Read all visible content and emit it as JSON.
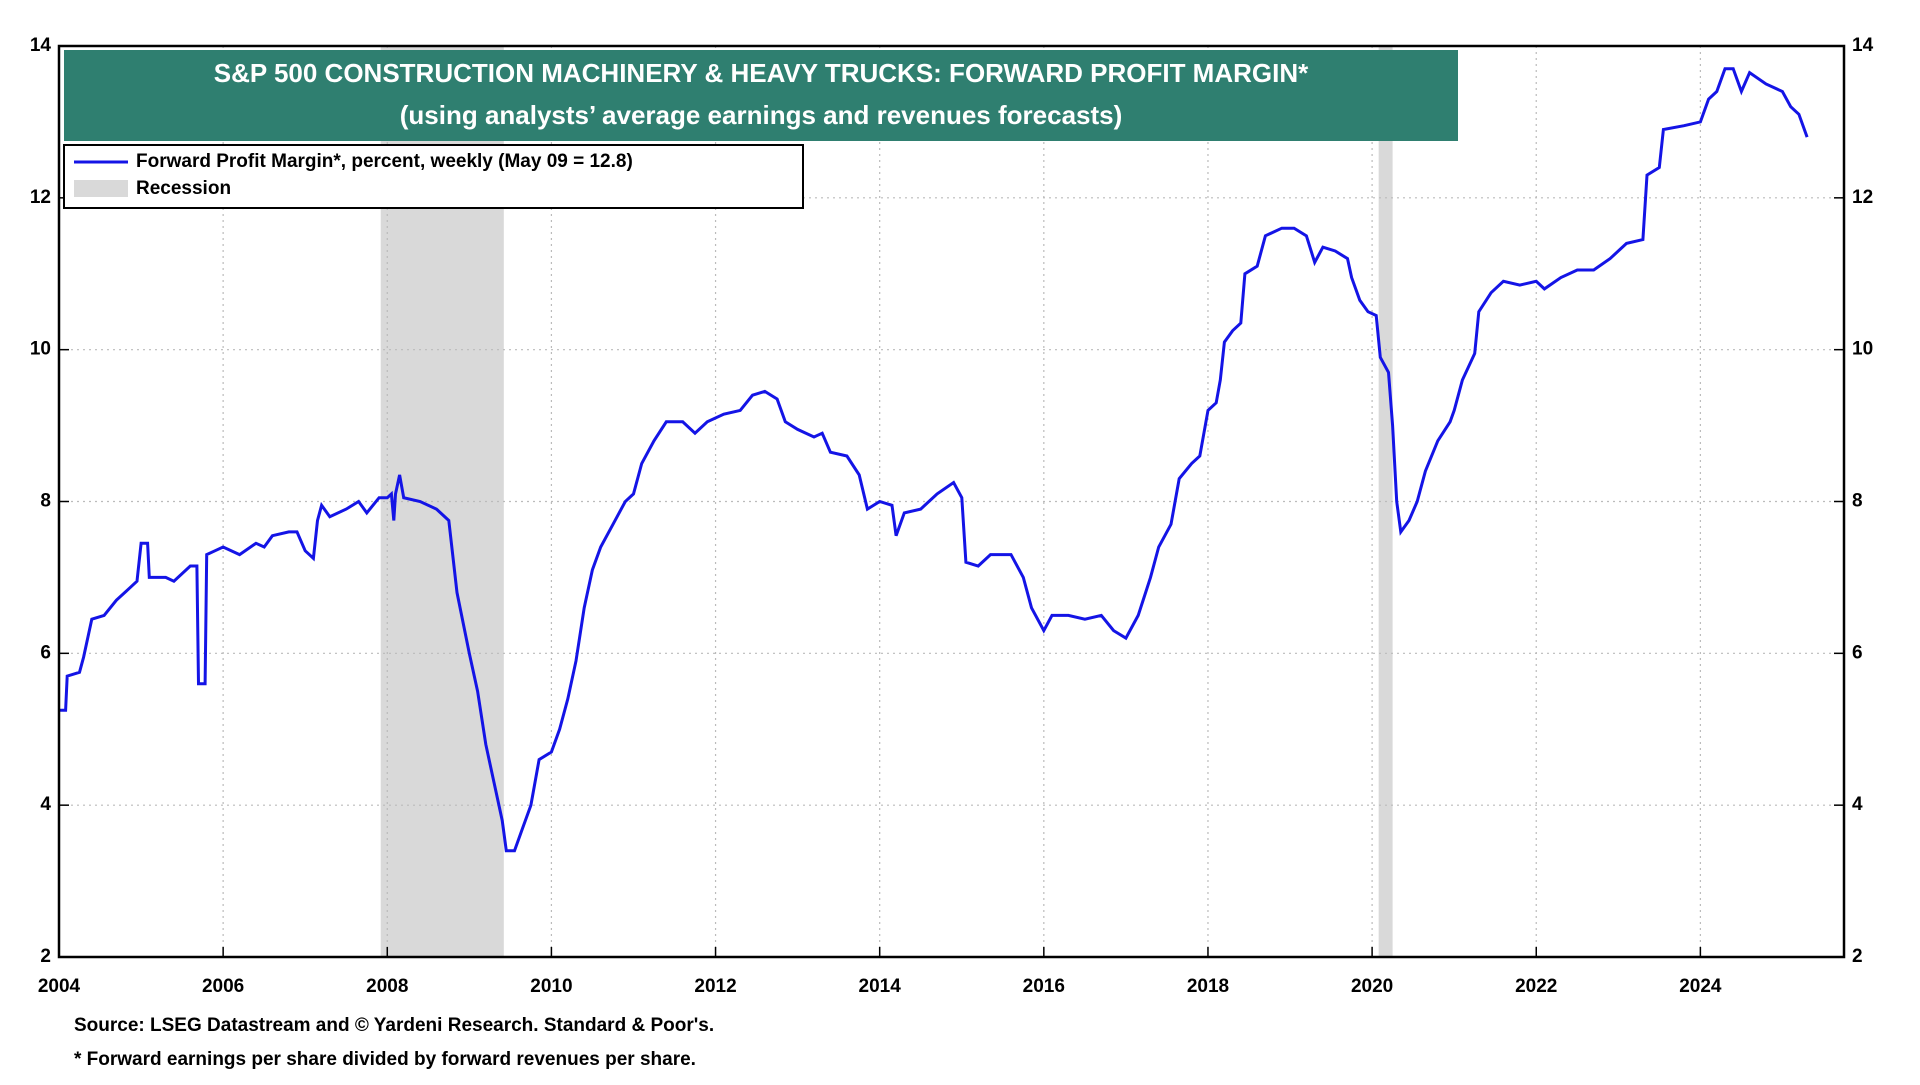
{
  "chart_data": {
    "type": "line",
    "title": "S&P 500 CONSTRUCTION MACHINERY & HEAVY TRUCKS: FORWARD PROFIT MARGIN*",
    "subtitle": "(using analysts’ average earnings and revenues forecasts)",
    "notes": [
      "Source: LSEG Datastream and © Yardeni Research. Standard & Poor's.",
      "* Forward earnings per share divided by forward revenues per share."
    ],
    "recession_label": "Recession",
    "recession_color": "#d9d9d9",
    "recessions": [
      {
        "start": 2007.92,
        "end": 2009.42
      },
      {
        "start": 2020.08,
        "end": 2020.25
      }
    ],
    "xlim": [
      2004,
      2025.75
    ],
    "xticks": [
      2004,
      2006,
      2008,
      2010,
      2012,
      2014,
      2016,
      2018,
      2020,
      2022,
      2024
    ],
    "ylim": [
      2,
      14
    ],
    "yticks": [
      2,
      4,
      6,
      8,
      10,
      12,
      14
    ],
    "grid": true,
    "x": [
      2004.0,
      2004.08,
      2004.1,
      2004.25,
      2004.3,
      2004.4,
      2004.55,
      2004.7,
      2004.85,
      2004.95,
      2005.0,
      2005.08,
      2005.1,
      2005.3,
      2005.4,
      2005.6,
      2005.68,
      2005.7,
      2005.78,
      2005.8,
      2005.9,
      2006.0,
      2006.2,
      2006.4,
      2006.5,
      2006.6,
      2006.8,
      2006.9,
      2007.0,
      2007.1,
      2007.15,
      2007.2,
      2007.3,
      2007.5,
      2007.65,
      2007.75,
      2007.9,
      2008.0,
      2008.05,
      2008.08,
      2008.1,
      2008.15,
      2008.2,
      2008.4,
      2008.6,
      2008.75,
      2008.85,
      2009.0,
      2009.1,
      2009.2,
      2009.3,
      2009.4,
      2009.45,
      2009.55,
      2009.65,
      2009.75,
      2009.85,
      2010.0,
      2010.1,
      2010.2,
      2010.3,
      2010.4,
      2010.5,
      2010.6,
      2010.75,
      2010.9,
      2011.0,
      2011.1,
      2011.25,
      2011.4,
      2011.6,
      2011.75,
      2011.9,
      2012.1,
      2012.3,
      2012.45,
      2012.6,
      2012.75,
      2012.85,
      2013.0,
      2013.2,
      2013.3,
      2013.4,
      2013.6,
      2013.75,
      2013.85,
      2014.0,
      2014.15,
      2014.2,
      2014.3,
      2014.5,
      2014.7,
      2014.9,
      2015.0,
      2015.05,
      2015.2,
      2015.35,
      2015.6,
      2015.75,
      2015.85,
      2016.0,
      2016.1,
      2016.3,
      2016.5,
      2016.7,
      2016.85,
      2017.0,
      2017.15,
      2017.3,
      2017.4,
      2017.55,
      2017.65,
      2017.8,
      2017.9,
      2018.0,
      2018.1,
      2018.15,
      2018.2,
      2018.3,
      2018.4,
      2018.45,
      2018.6,
      2018.7,
      2018.9,
      2019.05,
      2019.2,
      2019.3,
      2019.4,
      2019.55,
      2019.7,
      2019.75,
      2019.85,
      2019.95,
      2020.05,
      2020.1,
      2020.2,
      2020.25,
      2020.3,
      2020.35,
      2020.45,
      2020.55,
      2020.65,
      2020.8,
      2020.95,
      2021.0,
      2021.1,
      2021.25,
      2021.3,
      2021.45,
      2021.6,
      2021.8,
      2022.0,
      2022.1,
      2022.3,
      2022.5,
      2022.7,
      2022.9,
      2023.1,
      2023.3,
      2023.35,
      2023.5,
      2023.55,
      2023.8,
      2024.0,
      2024.1,
      2024.2,
      2024.3,
      2024.4,
      2024.5,
      2024.6,
      2024.8,
      2025.0,
      2025.1,
      2025.2,
      2025.3
    ],
    "series": [
      {
        "name": "Forward Profit Margin*, percent, weekly (May 09 = 12.8)",
        "color": "#1414e6",
        "values": [
          5.25,
          5.25,
          5.7,
          5.75,
          5.95,
          6.45,
          6.5,
          6.7,
          6.85,
          6.95,
          7.45,
          7.45,
          7.0,
          7.0,
          6.95,
          7.15,
          7.15,
          5.6,
          5.6,
          7.3,
          7.35,
          7.4,
          7.3,
          7.45,
          7.4,
          7.55,
          7.6,
          7.6,
          7.35,
          7.25,
          7.75,
          7.95,
          7.8,
          7.9,
          8.0,
          7.85,
          8.05,
          8.05,
          8.1,
          7.75,
          8.1,
          8.35,
          8.05,
          8.0,
          7.9,
          7.75,
          6.8,
          6.0,
          5.5,
          4.8,
          4.3,
          3.8,
          3.4,
          3.4,
          3.7,
          4.0,
          4.6,
          4.7,
          5.0,
          5.4,
          5.9,
          6.6,
          7.1,
          7.4,
          7.7,
          8.0,
          8.1,
          8.5,
          8.8,
          9.05,
          9.05,
          8.9,
          9.05,
          9.15,
          9.2,
          9.4,
          9.45,
          9.35,
          9.05,
          8.95,
          8.85,
          8.9,
          8.65,
          8.6,
          8.35,
          7.9,
          8.0,
          7.95,
          7.55,
          7.85,
          7.9,
          8.1,
          8.25,
          8.05,
          7.2,
          7.15,
          7.3,
          7.3,
          7.0,
          6.6,
          6.3,
          6.5,
          6.5,
          6.45,
          6.5,
          6.3,
          6.2,
          6.5,
          7.0,
          7.4,
          7.7,
          8.3,
          8.5,
          8.6,
          9.2,
          9.3,
          9.6,
          10.1,
          10.25,
          10.35,
          11.0,
          11.1,
          11.5,
          11.6,
          11.6,
          11.5,
          11.15,
          11.35,
          11.3,
          11.2,
          10.95,
          10.65,
          10.5,
          10.45,
          9.9,
          9.7,
          9.0,
          8.0,
          7.6,
          7.75,
          8.0,
          8.4,
          8.8,
          9.05,
          9.2,
          9.6,
          9.95,
          10.5,
          10.75,
          10.9,
          10.85,
          10.9,
          10.8,
          10.95,
          11.05,
          11.05,
          11.2,
          11.4,
          11.45,
          12.3,
          12.4,
          12.9,
          12.95,
          13.0,
          13.3,
          13.4,
          13.7,
          13.7,
          13.4,
          13.65,
          13.5,
          13.4,
          13.2,
          13.1,
          12.8
        ]
      }
    ]
  }
}
